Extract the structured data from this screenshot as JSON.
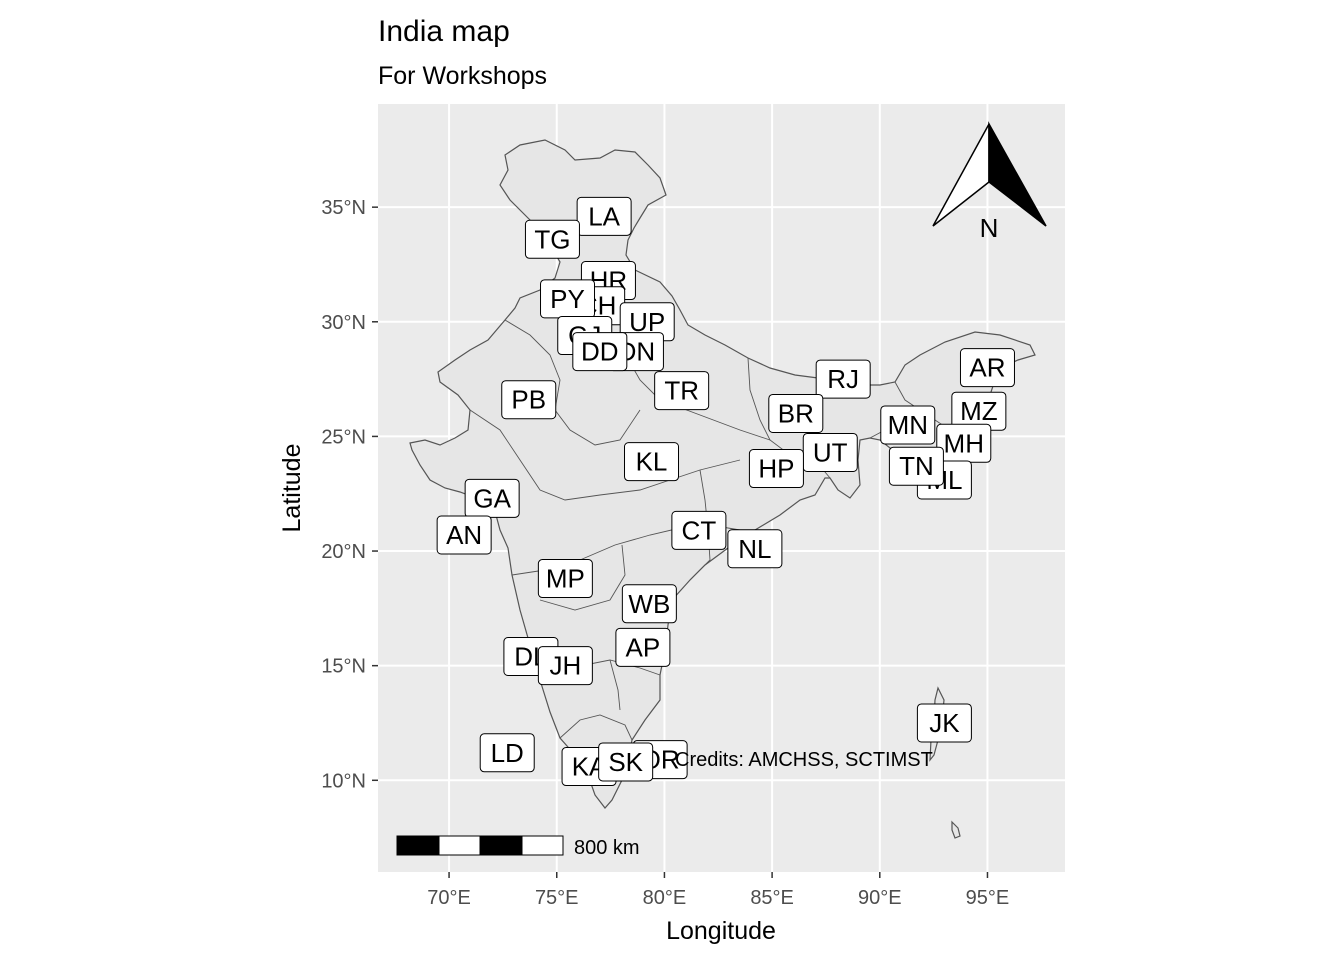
{
  "title": "India map",
  "subtitle": "For Workshops",
  "caption": "Credits: AMCHSS, SCTIMST",
  "colors": {
    "panel_background": "#ebebeb",
    "grid": "#ffffff",
    "land_fill": "#e6e6e6",
    "border": "#555555",
    "label_fill": "#ffffff"
  },
  "chart_data": {
    "type": "map",
    "xlabel": "Longitude",
    "ylabel": "Latitude",
    "xlim": [
      66.7,
      98.6
    ],
    "ylim": [
      6.0,
      39.5
    ],
    "x_ticks": [
      {
        "value": 70,
        "label": "70°E"
      },
      {
        "value": 75,
        "label": "75°E"
      },
      {
        "value": 80,
        "label": "80°E"
      },
      {
        "value": 85,
        "label": "85°E"
      },
      {
        "value": 90,
        "label": "90°E"
      },
      {
        "value": 95,
        "label": "95°E"
      }
    ],
    "y_ticks": [
      {
        "value": 10,
        "label": "10°N"
      },
      {
        "value": 15,
        "label": "15°N"
      },
      {
        "value": 20,
        "label": "20°N"
      },
      {
        "value": 25,
        "label": "25°N"
      },
      {
        "value": 30,
        "label": "30°N"
      },
      {
        "value": 35,
        "label": "35°N"
      }
    ],
    "grid": true,
    "state_labels": [
      {
        "code": "LA",
        "lon": 77.2,
        "lat": 34.6
      },
      {
        "code": "TG",
        "lon": 74.8,
        "lat": 33.6
      },
      {
        "code": "HR",
        "lon": 77.4,
        "lat": 31.8
      },
      {
        "code": "CH",
        "lon": 76.9,
        "lat": 30.7
      },
      {
        "code": "PY",
        "lon": 75.5,
        "lat": 31.0
      },
      {
        "code": "UP",
        "lon": 79.2,
        "lat": 30.0
      },
      {
        "code": "GJ",
        "lon": 76.3,
        "lat": 29.4
      },
      {
        "code": "DN",
        "lon": 78.7,
        "lat": 28.7
      },
      {
        "code": "DD",
        "lon": 77.0,
        "lat": 28.7
      },
      {
        "code": "TR",
        "lon": 80.8,
        "lat": 27.0
      },
      {
        "code": "PB",
        "lon": 73.7,
        "lat": 26.6
      },
      {
        "code": "RJ",
        "lon": 88.3,
        "lat": 27.5
      },
      {
        "code": "AR",
        "lon": 95.0,
        "lat": 28.0
      },
      {
        "code": "BR",
        "lon": 86.1,
        "lat": 26.0
      },
      {
        "code": "MZ",
        "lon": 94.6,
        "lat": 26.1
      },
      {
        "code": "MN",
        "lon": 91.3,
        "lat": 25.5
      },
      {
        "code": "MH",
        "lon": 93.9,
        "lat": 24.7
      },
      {
        "code": "UT",
        "lon": 87.7,
        "lat": 24.3
      },
      {
        "code": "KL",
        "lon": 79.4,
        "lat": 23.9
      },
      {
        "code": "HP",
        "lon": 85.2,
        "lat": 23.6
      },
      {
        "code": "ML",
        "lon": 93.0,
        "lat": 23.1
      },
      {
        "code": "TN",
        "lon": 91.7,
        "lat": 23.7
      },
      {
        "code": "GA",
        "lon": 72.0,
        "lat": 22.3
      },
      {
        "code": "AN",
        "lon": 70.7,
        "lat": 20.7
      },
      {
        "code": "CT",
        "lon": 81.6,
        "lat": 20.9
      },
      {
        "code": "NL",
        "lon": 84.2,
        "lat": 20.1
      },
      {
        "code": "MP",
        "lon": 75.4,
        "lat": 18.8
      },
      {
        "code": "WB",
        "lon": 79.3,
        "lat": 17.7
      },
      {
        "code": "AP",
        "lon": 79.0,
        "lat": 15.8
      },
      {
        "code": "DL",
        "lon": 73.8,
        "lat": 15.4
      },
      {
        "code": "JH",
        "lon": 75.4,
        "lat": 15.0
      },
      {
        "code": "JK",
        "lon": 93.0,
        "lat": 12.5
      },
      {
        "code": "LD",
        "lon": 72.7,
        "lat": 11.2
      },
      {
        "code": "OR",
        "lon": 79.8,
        "lat": 10.9
      },
      {
        "code": "KA",
        "lon": 76.5,
        "lat": 10.6
      },
      {
        "code": "SK",
        "lon": 78.2,
        "lat": 10.8
      }
    ],
    "north_arrow": {
      "label": "N",
      "placement": "top-right"
    },
    "scale_bar": {
      "label": "800 km",
      "placement": "bottom-left",
      "segments": 4
    }
  }
}
